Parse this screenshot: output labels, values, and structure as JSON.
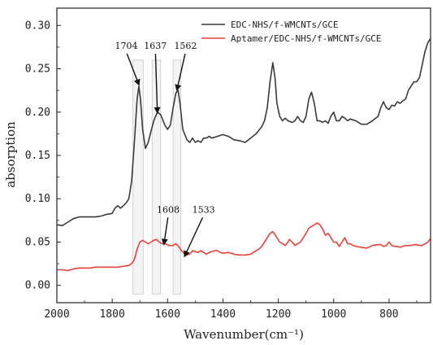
{
  "chart_data": {
    "type": "line",
    "xlabel": "Wavenumber(cm⁻¹)",
    "ylabel": "absorption",
    "xlim": [
      2000,
      650
    ],
    "ylim": [
      -0.02,
      0.32
    ],
    "x_reversed": true,
    "xticks": [
      2000,
      1800,
      1600,
      1400,
      1200,
      1000,
      800
    ],
    "xtick_labels": [
      "2000",
      "1800",
      "1600",
      "1400",
      "1200",
      "1000",
      "800"
    ],
    "yticks": [
      0.0,
      0.05,
      0.1,
      0.15,
      0.2,
      0.25,
      0.3
    ],
    "ytick_labels": [
      "0.00",
      "0.05",
      "0.10",
      "0.15",
      "0.20",
      "0.25",
      "0.30"
    ],
    "legend_position": "top-right",
    "series": [
      {
        "name": "EDC-NHS/f-WMCNTs/GCE",
        "color": "#3a3a3a",
        "x": [
          2000,
          1980,
          1960,
          1940,
          1920,
          1900,
          1880,
          1860,
          1840,
          1820,
          1800,
          1790,
          1780,
          1770,
          1760,
          1750,
          1740,
          1730,
          1720,
          1710,
          1704,
          1698,
          1690,
          1680,
          1670,
          1660,
          1650,
          1637,
          1625,
          1610,
          1600,
          1590,
          1580,
          1570,
          1562,
          1555,
          1545,
          1530,
          1520,
          1510,
          1500,
          1490,
          1480,
          1470,
          1460,
          1450,
          1440,
          1420,
          1400,
          1380,
          1360,
          1340,
          1320,
          1300,
          1280,
          1260,
          1250,
          1240,
          1230,
          1220,
          1212,
          1205,
          1195,
          1185,
          1175,
          1165,
          1150,
          1140,
          1130,
          1120,
          1110,
          1100,
          1090,
          1080,
          1070,
          1060,
          1050,
          1040,
          1030,
          1020,
          1010,
          1000,
          990,
          980,
          970,
          960,
          950,
          940,
          920,
          900,
          880,
          860,
          840,
          830,
          820,
          810,
          800,
          790,
          780,
          770,
          760,
          750,
          740,
          730,
          720,
          710,
          700,
          690,
          680,
          670,
          660,
          650
        ],
        "y": [
          0.07,
          0.069,
          0.073,
          0.077,
          0.079,
          0.079,
          0.079,
          0.079,
          0.08,
          0.082,
          0.083,
          0.089,
          0.092,
          0.089,
          0.092,
          0.095,
          0.1,
          0.12,
          0.165,
          0.215,
          0.23,
          0.215,
          0.18,
          0.158,
          0.165,
          0.178,
          0.19,
          0.2,
          0.197,
          0.185,
          0.18,
          0.185,
          0.205,
          0.222,
          0.225,
          0.21,
          0.18,
          0.168,
          0.165,
          0.17,
          0.165,
          0.167,
          0.165,
          0.17,
          0.17,
          0.172,
          0.17,
          0.172,
          0.174,
          0.172,
          0.168,
          0.167,
          0.165,
          0.17,
          0.175,
          0.183,
          0.19,
          0.205,
          0.235,
          0.257,
          0.24,
          0.21,
          0.195,
          0.19,
          0.193,
          0.19,
          0.188,
          0.19,
          0.195,
          0.19,
          0.188,
          0.195,
          0.215,
          0.223,
          0.21,
          0.19,
          0.19,
          0.188,
          0.19,
          0.187,
          0.195,
          0.2,
          0.19,
          0.19,
          0.195,
          0.193,
          0.19,
          0.192,
          0.19,
          0.186,
          0.186,
          0.19,
          0.195,
          0.205,
          0.212,
          0.205,
          0.203,
          0.208,
          0.207,
          0.212,
          0.21,
          0.213,
          0.215,
          0.225,
          0.23,
          0.235,
          0.235,
          0.24,
          0.255,
          0.27,
          0.28,
          0.285
        ]
      },
      {
        "name": "Aptamer/EDC-NHS/f-WMCNTs/GCE",
        "color": "#e8413a",
        "x": [
          2000,
          1980,
          1960,
          1940,
          1920,
          1900,
          1880,
          1860,
          1840,
          1820,
          1800,
          1780,
          1760,
          1740,
          1730,
          1720,
          1710,
          1700,
          1690,
          1680,
          1670,
          1660,
          1650,
          1640,
          1630,
          1620,
          1608,
          1595,
          1580,
          1570,
          1560,
          1550,
          1540,
          1533,
          1520,
          1510,
          1500,
          1490,
          1480,
          1470,
          1460,
          1450,
          1440,
          1430,
          1420,
          1410,
          1400,
          1380,
          1360,
          1340,
          1320,
          1300,
          1290,
          1280,
          1270,
          1260,
          1250,
          1240,
          1230,
          1220,
          1215,
          1205,
          1195,
          1185,
          1175,
          1165,
          1160,
          1150,
          1140,
          1130,
          1120,
          1110,
          1100,
          1090,
          1080,
          1070,
          1060,
          1050,
          1040,
          1030,
          1020,
          1010,
          1000,
          990,
          980,
          970,
          960,
          950,
          940,
          930,
          920,
          900,
          880,
          860,
          840,
          830,
          820,
          810,
          800,
          790,
          780,
          770,
          760,
          750,
          740,
          730,
          720,
          710,
          700,
          690,
          680,
          670,
          660,
          650
        ],
        "y": [
          0.018,
          0.018,
          0.017,
          0.019,
          0.02,
          0.02,
          0.02,
          0.021,
          0.021,
          0.021,
          0.021,
          0.021,
          0.022,
          0.023,
          0.025,
          0.03,
          0.042,
          0.05,
          0.052,
          0.05,
          0.048,
          0.05,
          0.052,
          0.053,
          0.05,
          0.048,
          0.048,
          0.046,
          0.046,
          0.048,
          0.045,
          0.04,
          0.037,
          0.035,
          0.036,
          0.04,
          0.039,
          0.038,
          0.04,
          0.038,
          0.036,
          0.038,
          0.039,
          0.04,
          0.04,
          0.038,
          0.037,
          0.038,
          0.036,
          0.035,
          0.035,
          0.036,
          0.038,
          0.04,
          0.042,
          0.045,
          0.05,
          0.055,
          0.06,
          0.062,
          0.06,
          0.055,
          0.05,
          0.048,
          0.046,
          0.05,
          0.053,
          0.05,
          0.046,
          0.048,
          0.05,
          0.055,
          0.06,
          0.066,
          0.068,
          0.07,
          0.072,
          0.07,
          0.065,
          0.058,
          0.06,
          0.055,
          0.05,
          0.05,
          0.045,
          0.05,
          0.055,
          0.048,
          0.048,
          0.046,
          0.045,
          0.044,
          0.043,
          0.046,
          0.047,
          0.047,
          0.045,
          0.046,
          0.05,
          0.046,
          0.045,
          0.045,
          0.044,
          0.045,
          0.046,
          0.046,
          0.046,
          0.047,
          0.047,
          0.046,
          0.046,
          0.048,
          0.05,
          0.054
        ]
      }
    ],
    "highlight_bands": [
      [
        1725,
        1688
      ],
      [
        1656,
        1625
      ],
      [
        1580,
        1552
      ]
    ],
    "annotations": [
      {
        "text": "1704",
        "target_x": 1704,
        "target_y": 0.232,
        "label_x": 1749,
        "label_y": 0.273
      },
      {
        "text": "1637",
        "target_x": 1637,
        "target_y": 0.2,
        "label_x": 1644,
        "label_y": 0.273
      },
      {
        "text": "1562",
        "target_x": 1566,
        "target_y": 0.226,
        "label_x": 1535,
        "label_y": 0.273
      },
      {
        "text": "1608",
        "target_x": 1613,
        "target_y": 0.048,
        "label_x": 1598,
        "label_y": 0.084
      },
      {
        "text": "1533",
        "target_x": 1538,
        "target_y": 0.034,
        "label_x": 1470,
        "label_y": 0.084
      }
    ]
  }
}
